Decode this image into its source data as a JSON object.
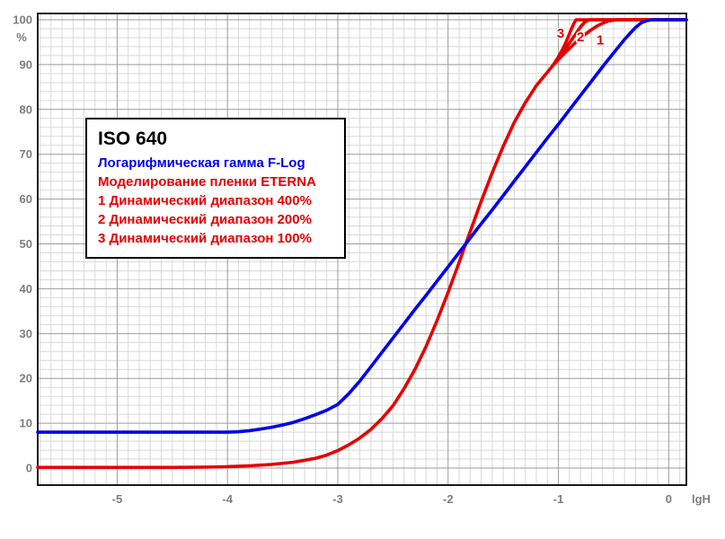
{
  "colors": {
    "background": "#ffffff",
    "frame": "#000000",
    "grid_major": "#9b9b9b",
    "grid_minor": "#d9d9d9",
    "axis_label": "#7d7d7d",
    "blue": "#0000ee",
    "red": "#e60000"
  },
  "legend": {
    "title": "ISO 640",
    "lines": [
      {
        "text": "Логарифмическая гамма F-Log",
        "color": "#0000ee"
      },
      {
        "text": "Моделирование пленки ETERNA",
        "color": "#e60000"
      },
      {
        "text": "1 Динамический диапазон 400%",
        "color": "#e60000"
      },
      {
        "text": "2 Динамический диапазон 200%",
        "color": "#e60000"
      },
      {
        "text": "3 Динамический диапазон 100%",
        "color": "#e60000"
      }
    ]
  },
  "axes": {
    "y_unit": "%",
    "x_unit": "lgH",
    "y_tick_values": [
      0,
      10,
      20,
      30,
      40,
      50,
      60,
      70,
      80,
      90,
      100
    ],
    "y_tick_labels": [
      "0",
      "10",
      "20",
      "30",
      "40",
      "50",
      "60",
      "70",
      "80",
      "90",
      "100"
    ],
    "x_tick_values": [
      -5,
      -4,
      -3,
      -2,
      -1,
      0
    ],
    "x_tick_labels": [
      "-5",
      "-4",
      "-3",
      "-2",
      "-1",
      "0"
    ]
  },
  "chart_data": {
    "type": "line",
    "title": "",
    "xlabel": "lgH",
    "ylabel": "%",
    "xlim": [
      -5.72,
      0.16
    ],
    "ylim": [
      -3.8,
      101.4
    ],
    "x_minor_step": 0.1,
    "y_minor_step": 2,
    "grid": true,
    "series": [
      {
        "name": "eterna-trunk",
        "label": "Моделирование пленки ETERNA",
        "color": "#e60000",
        "width": 3.6,
        "points": [
          [
            -5.72,
            0.15
          ],
          [
            -5.0,
            0.15
          ],
          [
            -4.5,
            0.15
          ],
          [
            -4.2,
            0.2
          ],
          [
            -4.0,
            0.3
          ],
          [
            -3.8,
            0.5
          ],
          [
            -3.6,
            0.8
          ],
          [
            -3.4,
            1.3
          ],
          [
            -3.2,
            2.2
          ],
          [
            -3.1,
            2.9
          ],
          [
            -3.0,
            3.9
          ],
          [
            -2.9,
            5.2
          ],
          [
            -2.8,
            6.7
          ],
          [
            -2.7,
            8.6
          ],
          [
            -2.6,
            11.0
          ],
          [
            -2.5,
            13.9
          ],
          [
            -2.4,
            17.7
          ],
          [
            -2.3,
            22.0
          ],
          [
            -2.2,
            27.1
          ],
          [
            -2.1,
            32.9
          ],
          [
            -2.0,
            39.2
          ],
          [
            -1.9,
            45.9
          ],
          [
            -1.84,
            50.0
          ],
          [
            -1.7,
            59.5
          ],
          [
            -1.6,
            65.9
          ],
          [
            -1.5,
            71.8
          ],
          [
            -1.4,
            77.1
          ],
          [
            -1.3,
            81.5
          ],
          [
            -1.2,
            85.3
          ],
          [
            -1.1,
            88.3
          ],
          [
            -1.05,
            89.8
          ]
        ]
      },
      {
        "name": "eterna-dr100-branch-3",
        "label": "3 Динамический диапазон 100%",
        "color": "#e60000",
        "width": 3.6,
        "points": [
          [
            -1.05,
            89.8
          ],
          [
            -1.0,
            91.7
          ],
          [
            -0.96,
            93.5
          ],
          [
            -0.92,
            95.6
          ],
          [
            -0.89,
            97.5
          ],
          [
            -0.86,
            99.2
          ],
          [
            -0.84,
            100
          ],
          [
            0.16,
            100
          ]
        ]
      },
      {
        "name": "eterna-dr200-branch-2",
        "label": "2 Динамический диапазон 200%",
        "color": "#e60000",
        "width": 3.6,
        "points": [
          [
            -1.05,
            89.8
          ],
          [
            -1.0,
            91.4
          ],
          [
            -0.95,
            93.0
          ],
          [
            -0.9,
            94.8
          ],
          [
            -0.85,
            96.6
          ],
          [
            -0.8,
            98.4
          ],
          [
            -0.76,
            99.5
          ],
          [
            -0.72,
            100
          ],
          [
            0.16,
            100
          ]
        ]
      },
      {
        "name": "eterna-dr400-branch-1",
        "label": "1 Динамический диапазон 400%",
        "color": "#e60000",
        "width": 3.6,
        "points": [
          [
            -1.05,
            89.8
          ],
          [
            -1.0,
            91.1
          ],
          [
            -0.95,
            92.4
          ],
          [
            -0.9,
            93.6
          ],
          [
            -0.85,
            94.8
          ],
          [
            -0.8,
            95.9
          ],
          [
            -0.75,
            96.9
          ],
          [
            -0.7,
            97.8
          ],
          [
            -0.65,
            98.6
          ],
          [
            -0.6,
            99.2
          ],
          [
            -0.55,
            99.7
          ],
          [
            -0.5,
            99.9
          ],
          [
            -0.46,
            100
          ],
          [
            0.16,
            100
          ]
        ]
      },
      {
        "name": "flog-curve",
        "label": "Логарифмическая гамма F-Log",
        "color": "#0000ee",
        "width": 3.6,
        "points": [
          [
            -5.72,
            8
          ],
          [
            -5.2,
            8
          ],
          [
            -4.7,
            8
          ],
          [
            -4.2,
            8
          ],
          [
            -4.0,
            8
          ],
          [
            -3.9,
            8.1
          ],
          [
            -3.8,
            8.35
          ],
          [
            -3.7,
            8.7
          ],
          [
            -3.6,
            9.1
          ],
          [
            -3.5,
            9.6
          ],
          [
            -3.4,
            10.2
          ],
          [
            -3.3,
            11.0
          ],
          [
            -3.2,
            11.9
          ],
          [
            -3.1,
            12.9
          ],
          [
            -3.0,
            14.2
          ],
          [
            -2.9,
            16.6
          ],
          [
            -2.8,
            19.4
          ],
          [
            -2.7,
            22.6
          ],
          [
            -2.6,
            25.8
          ],
          [
            -2.5,
            29.0
          ],
          [
            -2.4,
            32.2
          ],
          [
            -2.3,
            35.4
          ],
          [
            -2.2,
            38.5
          ],
          [
            -2.1,
            41.7
          ],
          [
            -2.0,
            44.9
          ],
          [
            -1.9,
            48.1
          ],
          [
            -1.84,
            50.0
          ],
          [
            -1.7,
            54.5
          ],
          [
            -1.6,
            57.6
          ],
          [
            -1.5,
            60.8
          ],
          [
            -1.4,
            64.0
          ],
          [
            -1.3,
            67.2
          ],
          [
            -1.2,
            70.4
          ],
          [
            -1.1,
            73.6
          ],
          [
            -1.0,
            76.7
          ],
          [
            -0.9,
            79.9
          ],
          [
            -0.8,
            83.1
          ],
          [
            -0.7,
            86.3
          ],
          [
            -0.6,
            89.5
          ],
          [
            -0.5,
            92.6
          ],
          [
            -0.45,
            94.1
          ],
          [
            -0.4,
            95.6
          ],
          [
            -0.35,
            97.0
          ],
          [
            -0.3,
            98.3
          ],
          [
            -0.25,
            99.3
          ],
          [
            -0.2,
            99.8
          ],
          [
            -0.15,
            100
          ],
          [
            0.16,
            100
          ]
        ]
      }
    ],
    "annotations": [
      {
        "text": "3",
        "x": -0.98,
        "y": 97.0
      },
      {
        "text": "2",
        "x": -0.8,
        "y": 96.2
      },
      {
        "text": "1",
        "x": -0.62,
        "y": 95.5
      }
    ],
    "legend_position": "upper-left-inside"
  }
}
